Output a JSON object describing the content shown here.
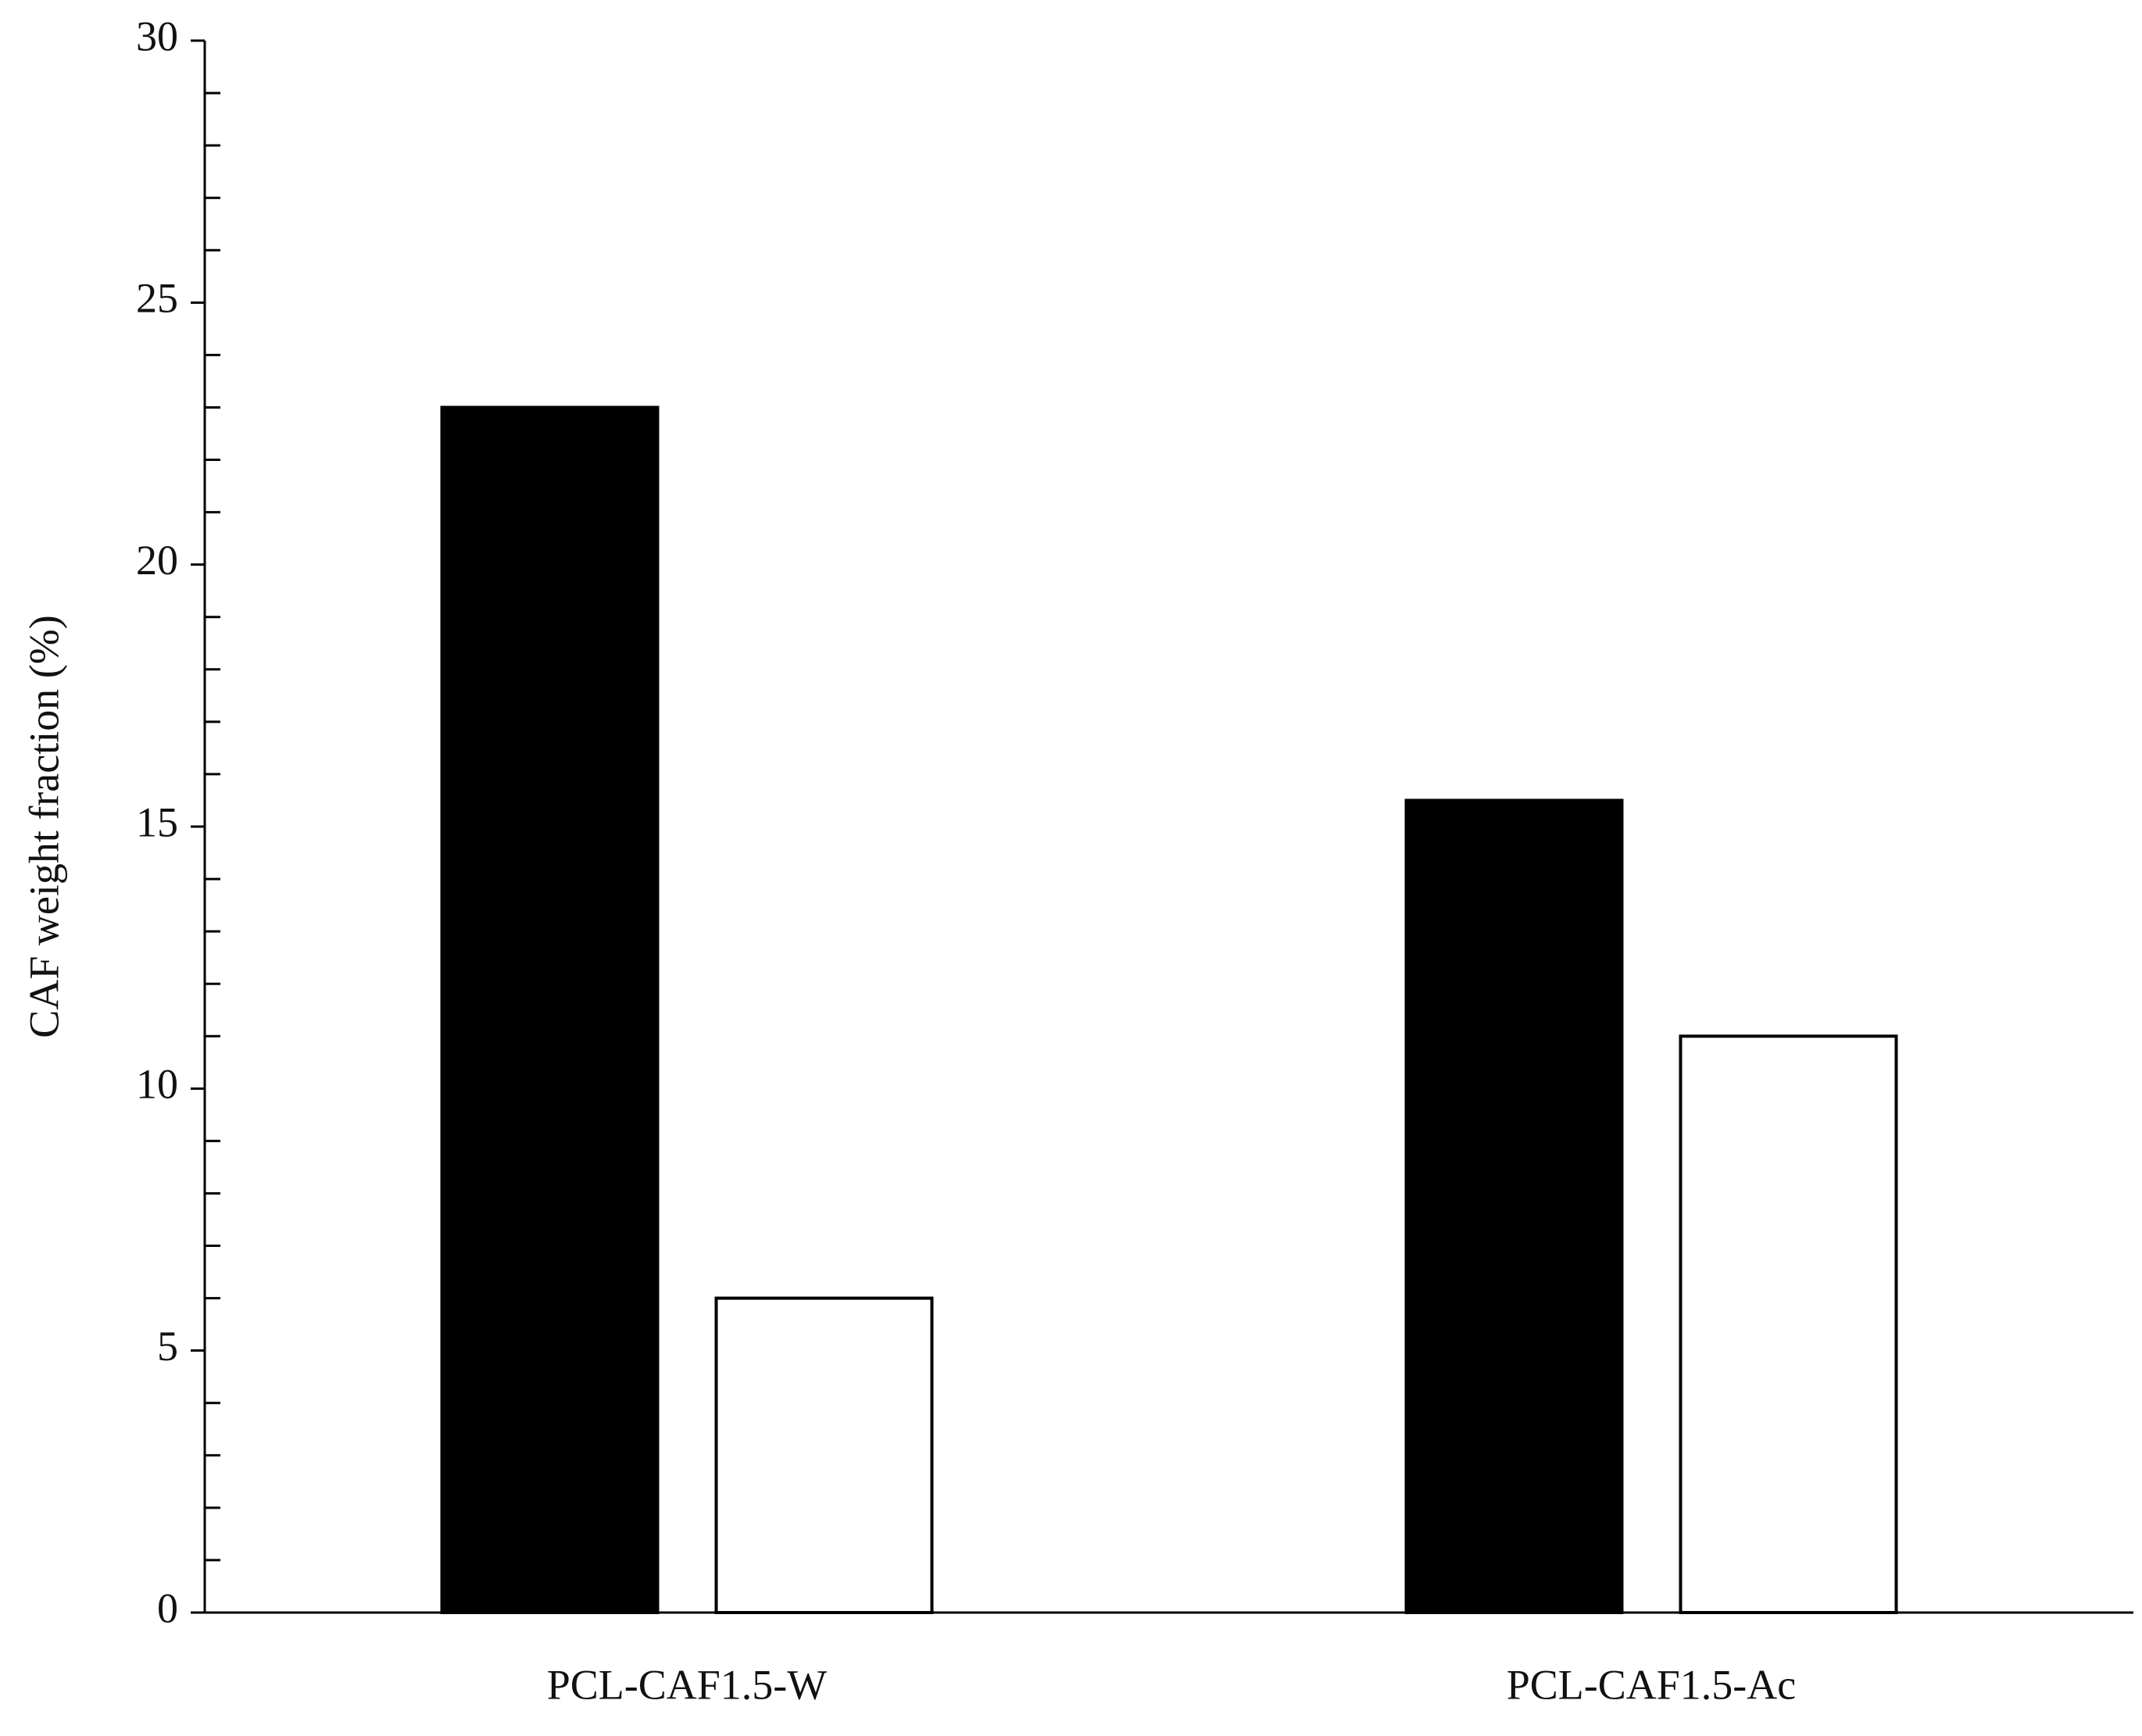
{
  "chart_data": {
    "type": "bar",
    "ylabel": "CAF weight fraction (%)",
    "categories": [
      "PCL-CAF1.5-W",
      "PCL-CAF1.5-Ac"
    ],
    "series": [
      {
        "color": "#000000",
        "values": [
          23,
          15.5
        ]
      },
      {
        "color": "#ffffff",
        "values": [
          6,
          11
        ]
      }
    ],
    "ylim": [
      0,
      30
    ],
    "yticks": [
      0,
      5,
      10,
      15,
      20,
      25,
      30
    ],
    "yminorticks": [
      1,
      2,
      3,
      4,
      6,
      7,
      8,
      9,
      11,
      12,
      13,
      14,
      16,
      17,
      18,
      19,
      21,
      22,
      23,
      24,
      26,
      27,
      28,
      29
    ],
    "grid": false
  }
}
